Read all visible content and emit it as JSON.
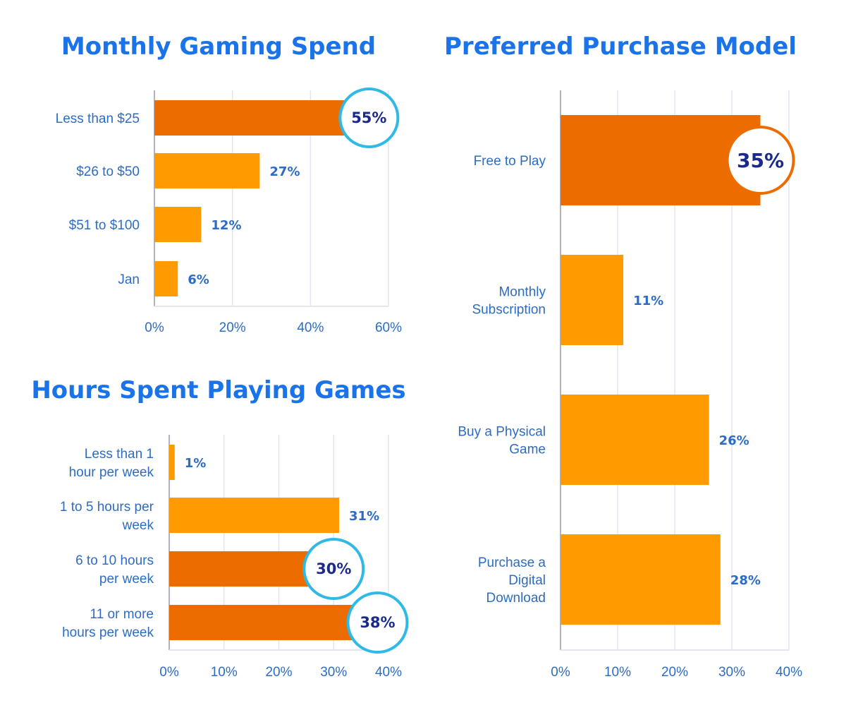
{
  "colors": {
    "title": "#1a73e8",
    "label": "#2d6cc4",
    "tick": "#2d6cc4",
    "value": "#2d6cc4",
    "bar_light": "#ff9a00",
    "bar_dark": "#ec6c00",
    "circle_ring_blue": "#2fb9e6",
    "circle_ring_orange": "#ec6c00",
    "circle_text": "#1a2a8c",
    "grid": "#e4e6ef",
    "axis": "#b0b3c0"
  },
  "chart_data": [
    {
      "id": "spend",
      "type": "bar",
      "orientation": "horizontal",
      "title": "Monthly Gaming Spend",
      "categories": [
        "Less than $25",
        "$26 to $50",
        "$51 to $100",
        "Jan"
      ],
      "values": [
        55,
        27,
        12,
        6
      ],
      "value_labels": [
        "55%",
        "27%",
        "12%",
        "6%"
      ],
      "highlight": [
        true,
        false,
        false,
        false
      ],
      "xlim": [
        0,
        60
      ],
      "ticks": [
        0,
        20,
        40,
        60
      ],
      "tick_labels": [
        "0%",
        "20%",
        "40%",
        "60%"
      ],
      "grid": true
    },
    {
      "id": "hours",
      "type": "bar",
      "orientation": "horizontal",
      "title": "Hours Spent Playing Games",
      "categories": [
        "Less than 1 hour per week",
        "1 to 5 hours per week",
        "6 to 10 hours per week",
        "11 or more hours per week"
      ],
      "values": [
        1,
        31,
        30,
        38
      ],
      "value_labels": [
        "1%",
        "31%",
        "30%",
        "38%"
      ],
      "highlight": [
        false,
        false,
        true,
        true
      ],
      "xlim": [
        0,
        40
      ],
      "ticks": [
        0,
        10,
        20,
        30,
        40
      ],
      "tick_labels": [
        "0%",
        "10%",
        "20%",
        "30%",
        "40%"
      ],
      "grid": true
    },
    {
      "id": "purchase",
      "type": "bar",
      "orientation": "horizontal",
      "title": "Preferred Purchase Model",
      "categories": [
        "Free to Play",
        "Monthly Subscription",
        "Buy a Physical Game",
        "Purchase a Digital Download"
      ],
      "values": [
        35,
        11,
        26,
        28
      ],
      "value_labels": [
        "35%",
        "11%",
        "26%",
        "28%"
      ],
      "highlight": [
        true,
        false,
        false,
        false
      ],
      "xlim": [
        0,
        40
      ],
      "ticks": [
        0,
        10,
        20,
        30,
        40
      ],
      "tick_labels": [
        "0%",
        "10%",
        "20%",
        "30%",
        "40%"
      ],
      "grid": true
    }
  ]
}
